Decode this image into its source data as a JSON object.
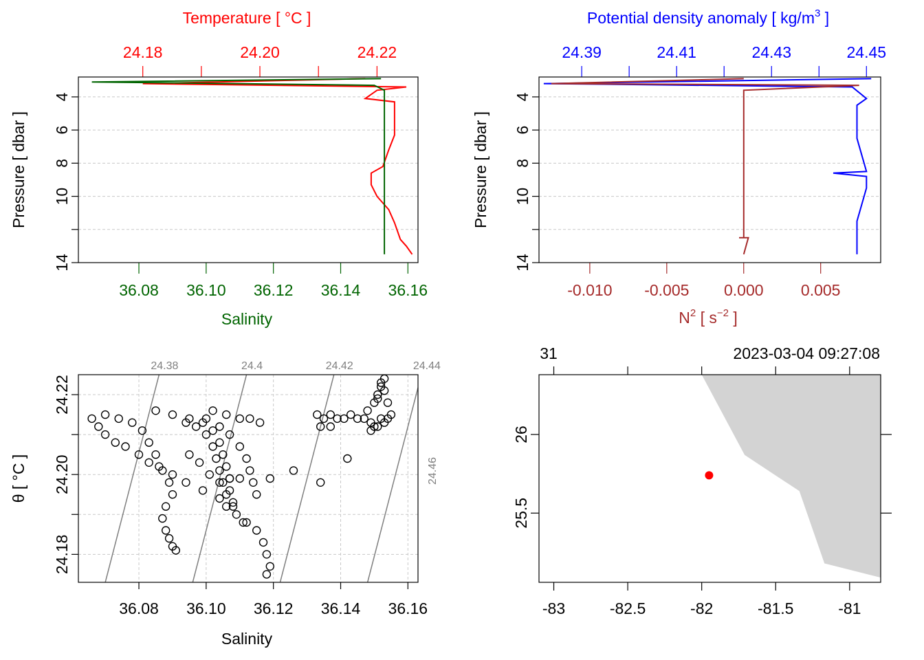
{
  "panels": {
    "ts_profile": {
      "temperature_axis": {
        "title": "Temperature [ °C ]",
        "ticks": [
          "24.18",
          "24.20",
          "24.22"
        ],
        "color": "#ff0000"
      },
      "salinity_axis": {
        "title": "Salinity",
        "ticks": [
          "36.08",
          "36.10",
          "36.12",
          "36.14",
          "36.16"
        ],
        "color": "#006400"
      },
      "pressure_axis": {
        "title": "Pressure [ dbar ]",
        "ticks": [
          "4",
          "6",
          "8",
          "10",
          "14"
        ]
      }
    },
    "density_profile": {
      "density_axis": {
        "title_main": "Potential density anomaly [ kg/m",
        "title_sup": "3",
        "title_end": " ]",
        "ticks": [
          "24.39",
          "24.41",
          "24.43",
          "24.45"
        ],
        "color": "#0000ff"
      },
      "n2_axis": {
        "title_main": "N",
        "title_sup1": "2",
        "title_mid": " [ s",
        "title_sup2": "−2",
        "title_end": " ]",
        "ticks": [
          "-0.010",
          "-0.005",
          "0.000",
          "0.005"
        ],
        "color": "#a52a2a"
      },
      "pressure_axis": {
        "title": "Pressure [ dbar ]",
        "ticks": [
          "4",
          "6",
          "8",
          "10",
          "14"
        ]
      }
    },
    "ts_diagram": {
      "x_axis": {
        "title": "Salinity",
        "ticks": [
          "36.08",
          "36.10",
          "36.12",
          "36.14",
          "36.16"
        ]
      },
      "y_axis": {
        "title": "θ [ °C ]",
        "ticks": [
          "24.18",
          "24.20",
          "24.22"
        ]
      },
      "isopycnal_labels": [
        "24.38",
        "24.4",
        "24.42",
        "24.44",
        "24.46"
      ]
    },
    "map": {
      "top_labels": {
        "left": "31",
        "right": "2023-03-04 09:27:08"
      },
      "lon_ticks": [
        "-83",
        "-82.5",
        "-82",
        "-81.5",
        "-81"
      ],
      "lat_ticks": [
        "26",
        "25.5"
      ],
      "station": {
        "lon": -81.95,
        "lat": 25.74
      },
      "land_color": "#d3d3d3"
    }
  },
  "chart_data": [
    {
      "type": "line",
      "panel": "ts_profile",
      "y_axis": {
        "label": "Pressure [ dbar ]",
        "range": [
          14.0,
          2.8
        ],
        "reversed": true
      },
      "x_axes": [
        {
          "label": "Temperature [ °C ]",
          "range": [
            24.169,
            24.227
          ]
        },
        {
          "label": "Salinity",
          "range": [
            36.062,
            36.163
          ]
        }
      ],
      "series": [
        {
          "name": "Temperature",
          "color": "#ff0000",
          "unit": "°C",
          "points": [
            [
              24.218,
              2.9
            ],
            [
              24.18,
              3.2
            ],
            [
              24.225,
              3.4
            ],
            [
              24.22,
              3.6
            ],
            [
              24.218,
              4.1
            ],
            [
              24.223,
              4.3
            ],
            [
              24.223,
              5.5
            ],
            [
              24.223,
              6.3
            ],
            [
              24.222,
              7.2
            ],
            [
              24.221,
              8.2
            ],
            [
              24.219,
              8.6
            ],
            [
              24.219,
              9.3
            ],
            [
              24.22,
              10.0
            ],
            [
              24.222,
              10.8
            ],
            [
              24.223,
              11.6
            ],
            [
              24.224,
              12.6
            ],
            [
              24.225,
              13.0
            ],
            [
              24.226,
              13.5
            ]
          ]
        },
        {
          "name": "Salinity",
          "color": "#006400",
          "unit": "",
          "points": [
            [
              36.152,
              2.9
            ],
            [
              36.066,
              3.1
            ],
            [
              36.15,
              3.3
            ],
            [
              36.153,
              3.6
            ],
            [
              36.153,
              4.1
            ],
            [
              36.153,
              5.0
            ],
            [
              36.153,
              6.0
            ],
            [
              36.153,
              7.0
            ],
            [
              36.153,
              8.0
            ],
            [
              36.153,
              8.6
            ],
            [
              36.153,
              9.5
            ],
            [
              36.153,
              10.5
            ],
            [
              36.153,
              11.5
            ],
            [
              36.153,
              12.5
            ],
            [
              36.153,
              13.5
            ]
          ]
        }
      ]
    },
    {
      "type": "line",
      "panel": "density_profile",
      "y_axis": {
        "label": "Pressure [ dbar ]",
        "range": [
          14.0,
          2.8
        ],
        "reversed": true
      },
      "x_axes": [
        {
          "label": "Potential density anomaly [ kg/m3 ]",
          "range": [
            24.381,
            24.453
          ]
        },
        {
          "label": "N2 [ s-2 ]",
          "range": [
            -0.0133,
            0.0089
          ]
        }
      ],
      "series": [
        {
          "name": "Potential density anomaly",
          "color": "#0000ff",
          "unit": "kg/m3",
          "points": [
            [
              24.451,
              2.9
            ],
            [
              24.382,
              3.2
            ],
            [
              24.447,
              3.4
            ],
            [
              24.45,
              4.1
            ],
            [
              24.448,
              4.5
            ],
            [
              24.448,
              5.5
            ],
            [
              24.448,
              6.5
            ],
            [
              24.449,
              7.5
            ],
            [
              24.45,
              8.5
            ],
            [
              24.443,
              8.6
            ],
            [
              24.45,
              8.8
            ],
            [
              24.45,
              9.5
            ],
            [
              24.449,
              10.5
            ],
            [
              24.448,
              11.5
            ],
            [
              24.448,
              12.5
            ],
            [
              24.448,
              13.5
            ]
          ]
        },
        {
          "name": "N2",
          "color": "#a52a2a",
          "unit": "s-2",
          "points": [
            [
              0.0,
              2.9
            ],
            [
              -0.0125,
              3.2
            ],
            [
              0.0075,
              3.3
            ],
            [
              0.0,
              3.6
            ],
            [
              0.0,
              4.0
            ],
            [
              0.0,
              6.0
            ],
            [
              0.0,
              8.0
            ],
            [
              0.0,
              10.0
            ],
            [
              0.0,
              12.0
            ],
            [
              0.0,
              12.5
            ],
            [
              -0.0003,
              12.5
            ],
            [
              0.0003,
              12.5
            ],
            [
              0.0,
              13.5
            ]
          ]
        }
      ]
    },
    {
      "type": "scatter",
      "panel": "ts_diagram",
      "x_axis": {
        "label": "Salinity",
        "range": [
          36.062,
          36.163
        ]
      },
      "y_axis": {
        "label": "θ [ °C ]",
        "range": [
          24.173,
          24.225
        ]
      },
      "points": [
        [
          36.066,
          24.214
        ],
        [
          36.068,
          24.212
        ],
        [
          36.07,
          24.21
        ],
        [
          36.073,
          24.208
        ],
        [
          36.076,
          24.207
        ],
        [
          36.08,
          24.205
        ],
        [
          36.083,
          24.203
        ],
        [
          36.086,
          24.202
        ],
        [
          36.09,
          24.2
        ],
        [
          36.094,
          24.198
        ],
        [
          36.099,
          24.196
        ],
        [
          36.104,
          24.194
        ],
        [
          36.108,
          24.192
        ],
        [
          36.112,
          24.188
        ],
        [
          36.115,
          24.186
        ],
        [
          36.117,
          24.183
        ],
        [
          36.118,
          24.18
        ],
        [
          36.119,
          24.177
        ],
        [
          36.118,
          24.175
        ],
        [
          36.07,
          24.215
        ],
        [
          36.074,
          24.214
        ],
        [
          36.078,
          24.213
        ],
        [
          36.081,
          24.211
        ],
        [
          36.083,
          24.208
        ],
        [
          36.085,
          24.205
        ],
        [
          36.087,
          24.201
        ],
        [
          36.089,
          24.198
        ],
        [
          36.09,
          24.195
        ],
        [
          36.088,
          24.192
        ],
        [
          36.087,
          24.189
        ],
        [
          36.088,
          24.186
        ],
        [
          36.089,
          24.184
        ],
        [
          36.09,
          24.182
        ],
        [
          36.091,
          24.181
        ],
        [
          36.085,
          24.216
        ],
        [
          36.09,
          24.215
        ],
        [
          36.095,
          24.214
        ],
        [
          36.099,
          24.213
        ],
        [
          36.102,
          24.211
        ],
        [
          36.104,
          24.208
        ],
        [
          36.105,
          24.205
        ],
        [
          36.106,
          24.202
        ],
        [
          36.107,
          24.199
        ],
        [
          36.107,
          24.196
        ],
        [
          36.108,
          24.193
        ],
        [
          36.109,
          24.19
        ],
        [
          36.111,
          24.188
        ],
        [
          36.094,
          24.213
        ],
        [
          36.097,
          24.212
        ],
        [
          36.1,
          24.21
        ],
        [
          36.102,
          24.207
        ],
        [
          36.103,
          24.204
        ],
        [
          36.104,
          24.201
        ],
        [
          36.105,
          24.198
        ],
        [
          36.106,
          24.195
        ],
        [
          36.106,
          24.192
        ],
        [
          36.1,
          24.214
        ],
        [
          36.104,
          24.212
        ],
        [
          36.107,
          24.21
        ],
        [
          36.11,
          24.207
        ],
        [
          36.112,
          24.204
        ],
        [
          36.113,
          24.201
        ],
        [
          36.114,
          24.198
        ],
        [
          36.115,
          24.195
        ],
        [
          36.102,
          24.216
        ],
        [
          36.106,
          24.215
        ],
        [
          36.11,
          24.214
        ],
        [
          36.113,
          24.214
        ],
        [
          36.116,
          24.213
        ],
        [
          36.095,
          24.205
        ],
        [
          36.098,
          24.203
        ],
        [
          36.101,
          24.2
        ],
        [
          36.104,
          24.198
        ],
        [
          36.107,
          24.199
        ],
        [
          36.11,
          24.199
        ],
        [
          36.119,
          24.199
        ],
        [
          36.126,
          24.201
        ],
        [
          36.134,
          24.198
        ],
        [
          36.142,
          24.204
        ],
        [
          36.133,
          24.215
        ],
        [
          36.135,
          24.214
        ],
        [
          36.137,
          24.215
        ],
        [
          36.139,
          24.214
        ],
        [
          36.141,
          24.214
        ],
        [
          36.143,
          24.215
        ],
        [
          36.145,
          24.214
        ],
        [
          36.147,
          24.214
        ],
        [
          36.149,
          24.213
        ],
        [
          36.151,
          24.212
        ],
        [
          36.153,
          24.213
        ],
        [
          36.154,
          24.214
        ],
        [
          36.155,
          24.215
        ],
        [
          36.148,
          24.216
        ],
        [
          36.15,
          24.218
        ],
        [
          36.151,
          24.22
        ],
        [
          36.152,
          24.222
        ],
        [
          36.153,
          24.224
        ],
        [
          36.152,
          24.223
        ],
        [
          36.153,
          24.221
        ],
        [
          36.151,
          24.219
        ],
        [
          36.154,
          24.218
        ],
        [
          36.15,
          24.212
        ],
        [
          36.149,
          24.211
        ],
        [
          36.152,
          24.214
        ],
        [
          36.134,
          24.212
        ],
        [
          36.137,
          24.212
        ]
      ],
      "isopycnals": [
        {
          "label": "24.38",
          "bottom_x": 36.07,
          "top_x": 36.086
        },
        {
          "label": "24.4",
          "bottom_x": 36.096,
          "top_x": 36.112
        },
        {
          "label": "24.42",
          "bottom_x": 36.122,
          "top_x": 36.138
        },
        {
          "label": "24.44",
          "bottom_x": 36.148,
          "top_x": 36.164
        },
        {
          "label": "24.46",
          "bottom_x": 36.174,
          "top_x": 36.19
        }
      ]
    },
    {
      "type": "map",
      "panel": "map",
      "x_axis": {
        "label": "longitude",
        "range": [
          -83.1,
          -80.79
        ]
      },
      "y_axis": {
        "label": "latitude",
        "range": [
          25.06,
          26.38
        ]
      },
      "land_polygon": [
        [
          -82.0,
          26.38
        ],
        [
          -81.71,
          25.87
        ],
        [
          -81.34,
          25.64
        ],
        [
          -81.17,
          25.18
        ],
        [
          -80.79,
          25.09
        ],
        [
          -80.79,
          26.38
        ]
      ],
      "points": [
        {
          "lon": -81.95,
          "lat": 25.74,
          "color": "#ff0000"
        }
      ]
    }
  ]
}
